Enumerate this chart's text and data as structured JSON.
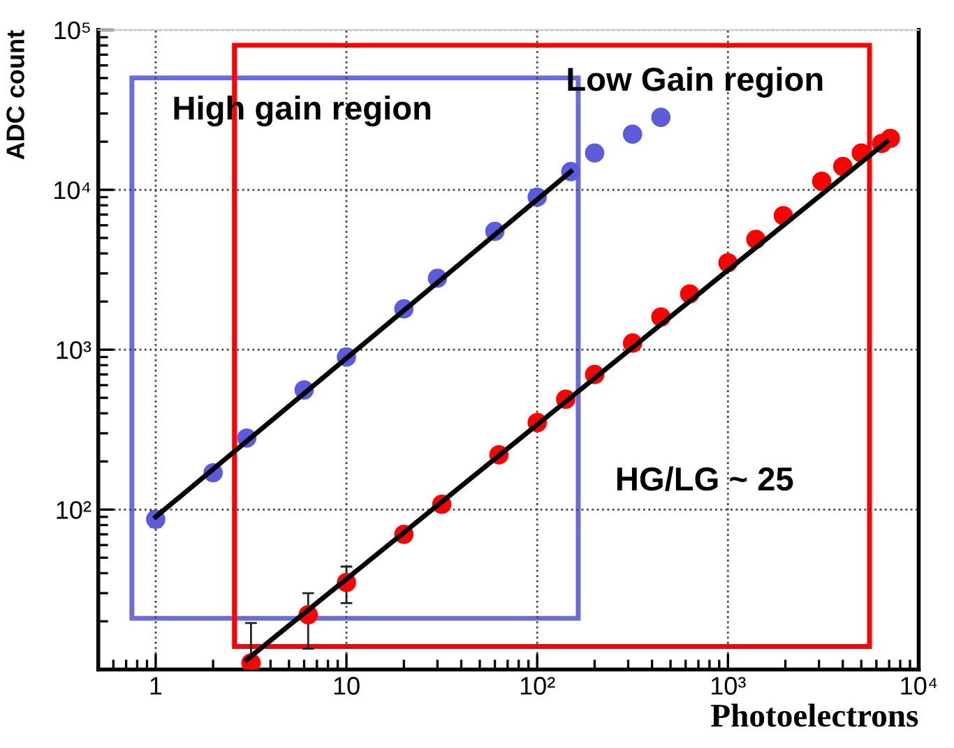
{
  "chart_data": {
    "type": "scatter",
    "xlabel": "Photoelectrons",
    "ylabel": "ADC count",
    "annotations": [
      "High gain region",
      "Low Gain region",
      "HG/LG ~ 25"
    ],
    "log": "xy",
    "grid": true,
    "marker": "circle",
    "legend": false,
    "xlim": [
      0.5,
      10000
    ],
    "ylim": [
      10,
      100000
    ],
    "xticks": [
      1,
      10,
      {
        "value": 100,
        "label": "10²"
      },
      {
        "value": 1000,
        "label": "10³"
      },
      {
        "value": 10000,
        "label": "10⁴"
      }
    ],
    "yticks": [
      {
        "value": 100,
        "label": "10²"
      },
      {
        "value": 1000,
        "label": "10³"
      },
      {
        "value": 10000,
        "label": "10⁴"
      },
      {
        "value": 100000,
        "label": "10⁵"
      }
    ],
    "series": [
      {
        "color": "#5b5bdc",
        "x": [
          1,
          2,
          3,
          6,
          10,
          20,
          30,
          60,
          100,
          150,
          200,
          316,
          445
        ],
        "values": [
          87,
          170,
          280,
          560,
          900,
          1800,
          2800,
          5500,
          9000,
          13000,
          17000,
          22300,
          28400
        ],
        "errors": [
          [
            78,
            98
          ],
          null,
          null,
          null,
          null,
          null,
          null,
          null,
          null,
          null,
          null,
          null,
          null
        ]
      },
      {
        "color": "#ff0000",
        "x": [
          3.16,
          6.3,
          10,
          20,
          31.6,
          63,
          100,
          141,
          200,
          316,
          445,
          630,
          1000,
          1400,
          1950,
          3100,
          4000,
          5000,
          6400,
          7100
        ],
        "values": [
          11,
          22,
          35,
          70,
          108,
          220,
          350,
          490,
          700,
          1100,
          1600,
          2230,
          3500,
          4900,
          6900,
          11300,
          14000,
          17000,
          19500,
          21000
        ],
        "errors": [
          [
            10,
            19.5
          ],
          [
            13.5,
            30
          ],
          [
            26,
            44
          ],
          null,
          null,
          null,
          null,
          null,
          null,
          null,
          null,
          null,
          null,
          null,
          null,
          null,
          null,
          null,
          null,
          null
        ]
      },
      {
        "type": "line",
        "marker": "none",
        "color": "#000000",
        "x": [
          1,
          150
        ],
        "values": [
          90,
          13000
        ]
      },
      {
        "type": "line",
        "marker": "none",
        "color": "#000000",
        "x": [
          3,
          6800
        ],
        "values": [
          11.5,
          20000
        ]
      }
    ]
  }
}
